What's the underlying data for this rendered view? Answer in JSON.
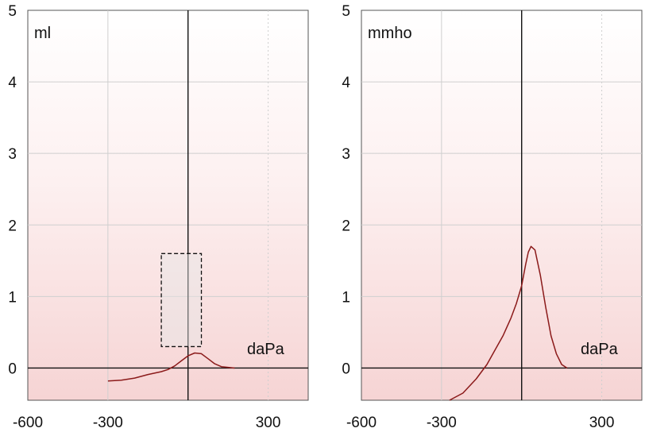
{
  "chart_data": [
    {
      "type": "line",
      "title": "",
      "ylabel": "ml",
      "xlabel": "daPa",
      "xlim": [
        -600,
        450
      ],
      "ylim": [
        -0.45,
        5
      ],
      "x_ticks": [
        "-600",
        "-300",
        "300"
      ],
      "x_tick_values": [
        -600,
        -300,
        300
      ],
      "y_ticks": [
        "0",
        "1",
        "2",
        "3",
        "4",
        "5"
      ],
      "y_tick_values": [
        0,
        1,
        2,
        3,
        4,
        5
      ],
      "grid": true,
      "reference_box": {
        "x": [
          -100,
          50
        ],
        "y": [
          0.3,
          1.6
        ]
      },
      "series": [
        {
          "name": "",
          "color": "#8b1a1a",
          "x": [
            -300,
            -250,
            -200,
            -150,
            -100,
            -75,
            -50,
            -25,
            0,
            25,
            50,
            75,
            100,
            125,
            150,
            175
          ],
          "y": [
            -0.18,
            -0.17,
            -0.14,
            -0.09,
            -0.05,
            -0.02,
            0.03,
            0.1,
            0.17,
            0.21,
            0.2,
            0.13,
            0.06,
            0.02,
            0.01,
            0.0
          ]
        }
      ]
    },
    {
      "type": "line",
      "title": "",
      "ylabel": "mmho",
      "xlabel": "daPa",
      "xlim": [
        -600,
        450
      ],
      "ylim": [
        -0.45,
        5
      ],
      "x_ticks": [
        "-600",
        "-300",
        "300"
      ],
      "x_tick_values": [
        -600,
        -300,
        300
      ],
      "y_ticks": [
        "0",
        "1",
        "2",
        "3",
        "4",
        "5"
      ],
      "y_tick_values": [
        0,
        1,
        2,
        3,
        4,
        5
      ],
      "grid": true,
      "series": [
        {
          "name": "",
          "color": "#8b1a1a",
          "x": [
            -270,
            -220,
            -170,
            -130,
            -100,
            -70,
            -40,
            -20,
            0,
            15,
            25,
            35,
            50,
            70,
            90,
            110,
            130,
            150,
            170
          ],
          "y": [
            -0.45,
            -0.35,
            -0.15,
            0.05,
            0.25,
            0.45,
            0.7,
            0.9,
            1.15,
            1.45,
            1.62,
            1.7,
            1.65,
            1.3,
            0.85,
            0.45,
            0.2,
            0.05,
            0.0
          ]
        }
      ]
    }
  ]
}
